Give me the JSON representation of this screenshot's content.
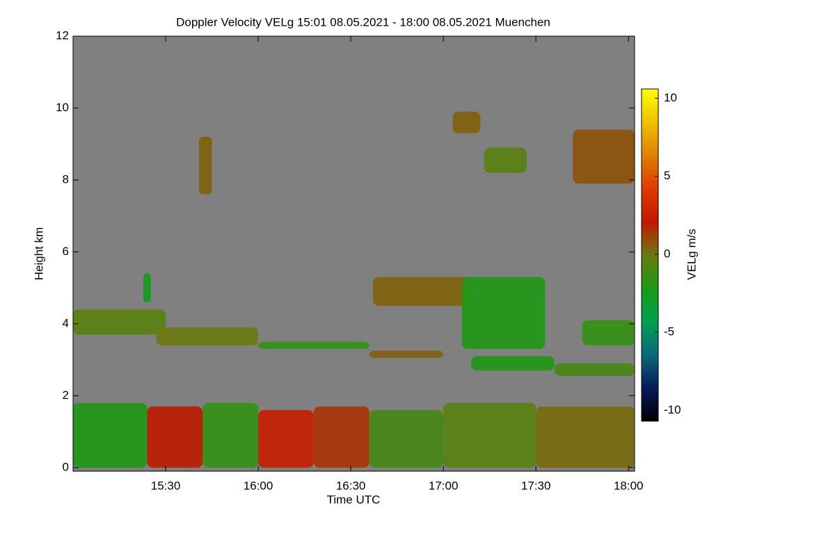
{
  "chart_data": {
    "type": "heatmap",
    "title": "Doppler Velocity VELg   15:01 08.05.2021 - 18:00 08.05.2021 Muenchen",
    "x_label": "Time UTC",
    "y_label": "Height km",
    "colorbar_label": "VELg m/s",
    "background": "#808080",
    "xlim": [
      15.0,
      18.033
    ],
    "ylim": [
      -0.1,
      12
    ],
    "xticks": [
      {
        "value": 15.5,
        "label": "15:30"
      },
      {
        "value": 16.0,
        "label": "16:00"
      },
      {
        "value": 16.5,
        "label": "16:30"
      },
      {
        "value": 17.0,
        "label": "17:00"
      },
      {
        "value": 17.5,
        "label": "17:30"
      },
      {
        "value": 18.0,
        "label": "18:00"
      }
    ],
    "yticks": [
      0,
      2,
      4,
      6,
      8,
      10,
      12
    ],
    "clim": [
      -10.7,
      10.6
    ],
    "cticks": [
      10,
      5,
      0,
      -5,
      -10
    ],
    "colormap": [
      "#000000",
      "#0a1a5a",
      "#0a6a7a",
      "#00a050",
      "#1a9a18",
      "#6a7a10",
      "#c01800",
      "#e03a00",
      "#e08000",
      "#f0c000",
      "#ffff00"
    ],
    "echoes": [
      {
        "x": [
          15.0,
          15.5
        ],
        "y": [
          3.7,
          4.4
        ],
        "value": -0.5
      },
      {
        "x": [
          15.45,
          16.0
        ],
        "y": [
          3.4,
          3.9
        ],
        "value": 0
      },
      {
        "x": [
          16.0,
          16.6
        ],
        "y": [
          3.3,
          3.5
        ],
        "value": -1.5
      },
      {
        "x": [
          16.6,
          17.0
        ],
        "y": [
          3.05,
          3.25
        ],
        "value": 0.5
      },
      {
        "x": [
          17.15,
          17.6
        ],
        "y": [
          2.7,
          3.1
        ],
        "value": -2
      },
      {
        "x": [
          17.6,
          18.033
        ],
        "y": [
          2.55,
          2.9
        ],
        "value": -1
      },
      {
        "x": [
          16.62,
          17.15
        ],
        "y": [
          4.5,
          5.3
        ],
        "value": 0.5
      },
      {
        "x": [
          17.1,
          17.55
        ],
        "y": [
          3.3,
          5.3
        ],
        "value": -2
      },
      {
        "x": [
          17.75,
          18.033
        ],
        "y": [
          3.4,
          4.1
        ],
        "value": -1.5
      },
      {
        "x": [
          17.22,
          17.45
        ],
        "y": [
          8.2,
          8.9
        ],
        "value": -0.5
      },
      {
        "x": [
          17.7,
          18.033
        ],
        "y": [
          7.9,
          9.4
        ],
        "value": 0.8
      },
      {
        "x": [
          15.68,
          15.75
        ],
        "y": [
          7.6,
          9.2
        ],
        "value": 0.5
      },
      {
        "x": [
          17.05,
          17.2
        ],
        "y": [
          9.3,
          9.9
        ],
        "value": 0.5
      },
      {
        "x": [
          15.38,
          15.42
        ],
        "y": [
          4.6,
          5.4
        ],
        "value": -2.5
      },
      {
        "x": [
          15.0,
          15.4
        ],
        "y": [
          0,
          1.8
        ],
        "value": -2
      },
      {
        "x": [
          15.4,
          15.7
        ],
        "y": [
          0,
          1.7
        ],
        "value": 2
      },
      {
        "x": [
          15.7,
          16.0
        ],
        "y": [
          0,
          1.8
        ],
        "value": -1.5
      },
      {
        "x": [
          16.0,
          16.3
        ],
        "y": [
          0,
          1.6
        ],
        "value": 2.5
      },
      {
        "x": [
          16.3,
          16.6
        ],
        "y": [
          0,
          1.7
        ],
        "value": 1.5
      },
      {
        "x": [
          16.6,
          17.0
        ],
        "y": [
          0,
          1.6
        ],
        "value": -1
      },
      {
        "x": [
          17.0,
          17.5
        ],
        "y": [
          0,
          1.8
        ],
        "value": -0.5
      },
      {
        "x": [
          17.5,
          18.033
        ],
        "y": [
          0,
          1.7
        ],
        "value": 0.3
      }
    ]
  }
}
